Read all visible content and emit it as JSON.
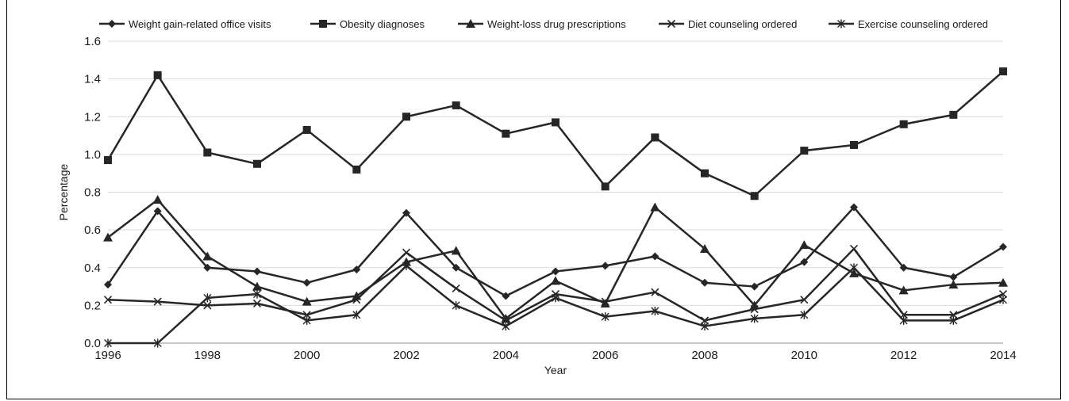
{
  "chart_data": {
    "type": "line",
    "title": "",
    "xlabel": "Year",
    "ylabel": "Percentage",
    "xlim": [
      1996,
      2014
    ],
    "ylim": [
      0,
      1.6
    ],
    "x_ticks": [
      "1996",
      "1998",
      "2000",
      "2002",
      "2004",
      "2006",
      "2008",
      "2010",
      "2012",
      "2014"
    ],
    "y_ticks": [
      "0.0",
      "0.2",
      "0.4",
      "0.6",
      "0.8",
      "1.0",
      "1.2",
      "1.4",
      "1.6"
    ],
    "grid": "horizontal",
    "legend_position": "top",
    "x": [
      1996,
      1997,
      1998,
      1999,
      2000,
      2001,
      2002,
      2003,
      2004,
      2005,
      2006,
      2007,
      2008,
      2009,
      2010,
      2011,
      2012,
      2013,
      2014
    ],
    "series": [
      {
        "name": "Weight gain-related office visits",
        "marker": "diamond",
        "values": [
          0.31,
          0.7,
          0.4,
          0.38,
          0.32,
          0.39,
          0.69,
          0.4,
          0.25,
          0.38,
          0.41,
          0.46,
          0.32,
          0.3,
          0.43,
          0.72,
          0.4,
          0.35,
          0.51
        ]
      },
      {
        "name": "Obesity diagnoses",
        "marker": "square",
        "values": [
          0.97,
          1.42,
          1.01,
          0.95,
          1.13,
          0.92,
          1.2,
          1.26,
          1.11,
          1.17,
          0.83,
          1.09,
          0.9,
          0.78,
          1.02,
          1.05,
          1.16,
          1.21,
          1.44
        ]
      },
      {
        "name": "Weight-loss drug prescriptions",
        "marker": "triangle",
        "values": [
          0.56,
          0.76,
          0.46,
          0.3,
          0.22,
          0.25,
          0.43,
          0.49,
          0.13,
          0.33,
          0.21,
          0.72,
          0.5,
          0.2,
          0.52,
          0.37,
          0.28,
          0.31,
          0.32
        ]
      },
      {
        "name": "Diet counseling ordered",
        "marker": "x",
        "values": [
          0.23,
          0.22,
          0.2,
          0.21,
          0.15,
          0.23,
          0.48,
          0.29,
          0.12,
          0.26,
          0.22,
          0.27,
          0.12,
          0.18,
          0.23,
          0.5,
          0.15,
          0.15,
          0.26
        ]
      },
      {
        "name": "Exercise counseling ordered",
        "marker": "asterisk",
        "values": [
          0.0,
          0.0,
          0.24,
          0.26,
          0.12,
          0.15,
          0.41,
          0.2,
          0.09,
          0.24,
          0.14,
          0.17,
          0.09,
          0.13,
          0.15,
          0.4,
          0.12,
          0.12,
          0.23
        ]
      }
    ],
    "colors": {
      "line": "#262626",
      "grid": "#d9d9d9"
    }
  }
}
